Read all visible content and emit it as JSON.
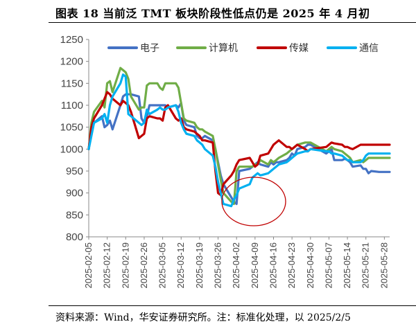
{
  "figure": {
    "title": "图表 18  当前泛 TMT 板块阶段性低点仍是 2025 年 4 月初",
    "source": "资料来源：Wind，华安证券研究所。注：标准化处理，以 2025/2/5"
  },
  "chart_data": {
    "type": "line",
    "title": "",
    "xlabel": "",
    "ylabel": "",
    "ylim": [
      800,
      1250
    ],
    "yticks": [
      800,
      850,
      900,
      950,
      1000,
      1050,
      1100,
      1150,
      1200,
      1250
    ],
    "xtick_labels": [
      "2025-02-05",
      "2025-02-12",
      "2025-02-19",
      "2025-02-26",
      "2025-03-05",
      "2025-03-12",
      "2025-03-19",
      "2025-03-26",
      "2025-04-02",
      "2025-04-09",
      "2025-04-16",
      "2025-04-23",
      "2025-04-30",
      "2025-05-07",
      "2025-05-14",
      "2025-05-21",
      "2025-05-28"
    ],
    "x": [
      "2025-02-05",
      "2025-02-06",
      "2025-02-07",
      "2025-02-10",
      "2025-02-11",
      "2025-02-12",
      "2025-02-13",
      "2025-02-14",
      "2025-02-17",
      "2025-02-18",
      "2025-02-19",
      "2025-02-20",
      "2025-02-21",
      "2025-02-24",
      "2025-02-25",
      "2025-02-26",
      "2025-02-27",
      "2025-02-28",
      "2025-03-03",
      "2025-03-04",
      "2025-03-05",
      "2025-03-06",
      "2025-03-07",
      "2025-03-10",
      "2025-03-11",
      "2025-03-12",
      "2025-03-13",
      "2025-03-14",
      "2025-03-17",
      "2025-03-18",
      "2025-03-19",
      "2025-03-20",
      "2025-03-21",
      "2025-03-24",
      "2025-03-25",
      "2025-03-26",
      "2025-03-27",
      "2025-03-28",
      "2025-03-31",
      "2025-04-01",
      "2025-04-02",
      "2025-04-03",
      "2025-04-07",
      "2025-04-08",
      "2025-04-09",
      "2025-04-10",
      "2025-04-11",
      "2025-04-14",
      "2025-04-15",
      "2025-04-16",
      "2025-04-17",
      "2025-04-18",
      "2025-04-21",
      "2025-04-22",
      "2025-04-23",
      "2025-04-24",
      "2025-04-25",
      "2025-04-28",
      "2025-04-29",
      "2025-04-30",
      "2025-05-06",
      "2025-05-07",
      "2025-05-08",
      "2025-05-09",
      "2025-05-12",
      "2025-05-13",
      "2025-05-14",
      "2025-05-15",
      "2025-05-16",
      "2025-05-19",
      "2025-05-20",
      "2025-05-21",
      "2025-05-22",
      "2025-05-23",
      "2025-05-26",
      "2025-05-27",
      "2025-05-28",
      "2025-05-29",
      "2025-05-30"
    ],
    "series": [
      {
        "name": "电子",
        "color": "#4472C4",
        "values": [
          1000,
          1040,
          1060,
          1075,
          1050,
          1055,
          1065,
          1045,
          1100,
          1120,
          1125,
          1125,
          1125,
          1120,
          1070,
          1060,
          1075,
          1100,
          1100,
          1100,
          1100,
          1100,
          1095,
          1100,
          1095,
          1105,
          1065,
          1055,
          1050,
          1030,
          1025,
          1025,
          1030,
          1020,
          1000,
          970,
          940,
          920,
          890,
          880,
          875,
          950,
          955,
          960,
          965,
          970,
          965,
          960,
          970,
          965,
          970,
          970,
          975,
          980,
          990,
          985,
          1000,
          1005,
          1010,
          1010,
          990,
          995,
          1000,
          975,
          975,
          978,
          975,
          970,
          960,
          963,
          955,
          955,
          945,
          950,
          948,
          948,
          948,
          948,
          948
        ]
      },
      {
        "name": "计算机",
        "color": "#70AD47",
        "values": [
          1000,
          1060,
          1085,
          1110,
          1095,
          1150,
          1155,
          1130,
          1185,
          1180,
          1175,
          1160,
          1120,
          1090,
          1095,
          1095,
          1145,
          1150,
          1150,
          1140,
          1135,
          1150,
          1150,
          1150,
          1140,
          1105,
          1070,
          1065,
          1060,
          1050,
          1045,
          1045,
          1040,
          1030,
          1000,
          965,
          930,
          900,
          880,
          875,
          950,
          960,
          960,
          960,
          965,
          965,
          975,
          965,
          975,
          970,
          975,
          980,
          990,
          995,
          1000,
          1005,
          1010,
          1015,
          1015,
          1015,
          995,
          1000,
          1005,
          1000,
          995,
          990,
          985,
          980,
          970,
          975,
          970,
          975,
          980,
          980,
          980,
          980,
          980,
          980,
          980
        ]
      },
      {
        "name": "传媒",
        "color": "#C00000",
        "values": [
          1000,
          1050,
          1070,
          1100,
          1115,
          1130,
          1125,
          1115,
          1100,
          1110,
          1105,
          1100,
          1085,
          1025,
          1030,
          1035,
          1070,
          1075,
          1070,
          1070,
          1065,
          1095,
          1100,
          1070,
          1065,
          1070,
          1050,
          1045,
          1040,
          1035,
          1030,
          1020,
          1020,
          1015,
          950,
          900,
          895,
          920,
          940,
          950,
          965,
          975,
          980,
          970,
          960,
          965,
          985,
          990,
          1000,
          1010,
          1015,
          1020,
          1005,
          1005,
          1000,
          1005,
          1010,
          1000,
          995,
          1000,
          1005,
          1010,
          1015,
          1013,
          1010,
          1005,
          1005,
          1002,
          1000,
          1010,
          1010,
          1010,
          1010,
          1010,
          1010,
          1010,
          1010,
          1010,
          1010
        ]
      },
      {
        "name": "通信",
        "color": "#00B0F0",
        "values": [
          1000,
          1030,
          1060,
          1070,
          1080,
          1060,
          1100,
          1120,
          1150,
          1170,
          1165,
          1080,
          1075,
          1060,
          1055,
          1060,
          1090,
          1080,
          1090,
          1095,
          1090,
          1090,
          1095,
          1100,
          1085,
          1060,
          1045,
          1035,
          1030,
          1020,
          1015,
          1010,
          1000,
          985,
          960,
          925,
          900,
          875,
          870,
          885,
          895,
          910,
          920,
          935,
          940,
          945,
          940,
          945,
          950,
          955,
          960,
          965,
          970,
          975,
          980,
          985,
          990,
          995,
          995,
          1000,
          995,
          995,
          990,
          990,
          985,
          980,
          975,
          975,
          970,
          970,
          975,
          985,
          990,
          990,
          990,
          990,
          990,
          990,
          990
        ]
      }
    ],
    "grid": false,
    "legend": "top",
    "annotation": "red-ellipse-around-april-low"
  }
}
